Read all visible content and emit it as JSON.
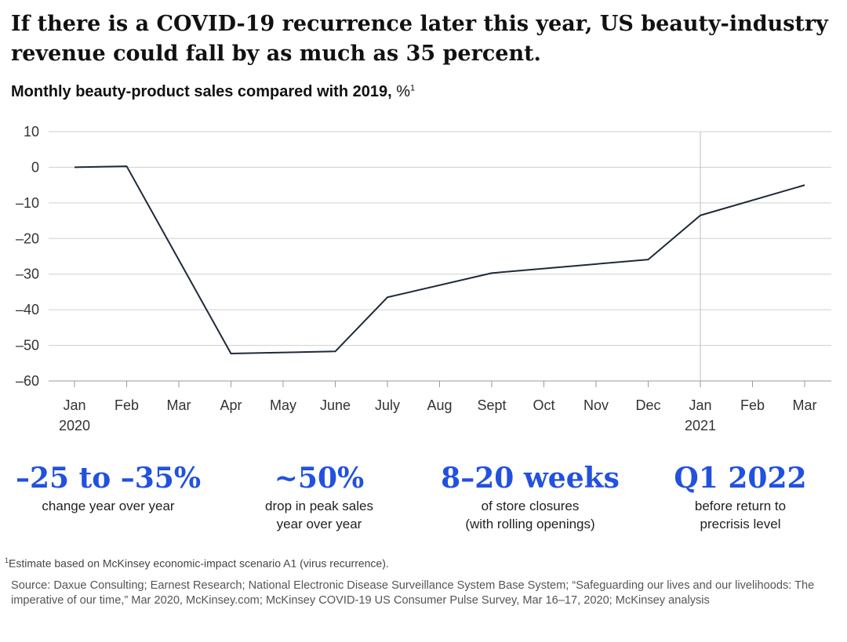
{
  "title": "If there is a COVID-19 recurrence later this year, US beauty-industry revenue could fall by as much as 35 percent.",
  "subtitle": {
    "text": "Monthly beauty-product sales compared with 2019,",
    "unit": "%",
    "footnote_marker": "1"
  },
  "chart_data": {
    "type": "line",
    "categories": [
      "Jan",
      "Feb",
      "Mar",
      "Apr",
      "May",
      "June",
      "July",
      "Aug",
      "Sept",
      "Oct",
      "Nov",
      "Dec",
      "Jan",
      "Feb",
      "Mar"
    ],
    "year_labels": [
      "2020",
      "",
      "",
      "",
      "",
      "",
      "",
      "",
      "",
      "",
      "",
      "",
      "2021",
      "",
      ""
    ],
    "series": [
      {
        "values": [
          0,
          0.3,
          null,
          -52.3,
          null,
          -51.7,
          -36.5,
          null,
          -29.7,
          null,
          null,
          -25.9,
          -13.5,
          null,
          -5
        ]
      }
    ],
    "yticks": [
      10,
      0,
      -10,
      -20,
      -30,
      -40,
      -50,
      -60
    ],
    "ytick_labels": [
      "10",
      "0",
      "–10",
      "–20",
      "–30",
      "–40",
      "–50",
      "–60"
    ],
    "ylim": [
      -60,
      10
    ],
    "grid": true,
    "divider_at_category": 12,
    "line_color": "#1d2a3a"
  },
  "stats": [
    {
      "value": "–25 to –35%",
      "desc": [
        "change year over year"
      ]
    },
    {
      "value": "~50%",
      "desc": [
        "drop in peak sales",
        "year over year"
      ]
    },
    {
      "value": "8–20 weeks",
      "desc": [
        "of store closures",
        "(with rolling openings)"
      ]
    },
    {
      "value": "Q1 2022",
      "desc": [
        "before return to",
        "precrisis level"
      ]
    }
  ],
  "accent_color": "#2251e0",
  "footnote": {
    "marker": "1",
    "text": "Estimate based on McKinsey economic-impact scenario A1 (virus recurrence)."
  },
  "source": "Source: Daxue Consulting; Earnest Research; National Electronic Disease Surveillance System Base System; “Safeguarding our lives and our livelihoods: The imperative of our time,” Mar 2020, McKinsey.com; McKinsey COVID-19 US Consumer Pulse Survey, Mar 16–17, 2020; McKinsey analysis"
}
